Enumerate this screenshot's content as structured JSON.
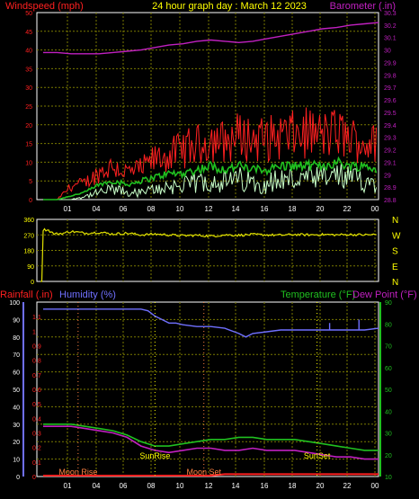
{
  "header": {
    "title": "24 hour graph day : March 12 2023",
    "windspeed_label": "Windspeed (mph)",
    "barometer_label": "Barometer (.in)",
    "rainfall_label": "Rainfall (.in)",
    "humidity_label": "Humidity (%)",
    "temperature_label": "Temperature (°F)",
    "dewpoint_label": "Dew Point (°F)"
  },
  "colors": {
    "wind": "#ff2020",
    "gust": "#ff2020",
    "avg_wind": "#20c020",
    "low_wind": "#c8ffc8",
    "barometer": "#c020c0",
    "direction": "#e0e000",
    "humidity": "#7070ff",
    "temperature": "#20c020",
    "dewpoint": "#c020c0",
    "rain": "#ff2020",
    "grid": "#7a7a00",
    "frame": "#ffffff",
    "title": "#ffff00"
  },
  "chart_data": [
    {
      "type": "line",
      "name": "wind_barometer",
      "x_ticks": [
        "01",
        "04",
        "06",
        "08",
        "10",
        "12",
        "14",
        "16",
        "18",
        "20",
        "22",
        "00"
      ],
      "left_axis": {
        "label": "Windspeed (mph)",
        "range": [
          0,
          50
        ],
        "ticks": [
          0,
          5,
          10,
          15,
          20,
          25,
          30,
          35,
          40,
          45,
          50
        ]
      },
      "right_axis": {
        "label": "Barometer (.in)",
        "range": [
          28.8,
          30.3
        ],
        "ticks": [
          "28.8",
          "28.9",
          "29",
          "29.1",
          "29.2",
          "29.3",
          "29.4",
          "29.5",
          "29.6",
          "29.7",
          "29.8",
          "29.9",
          "30",
          "30.1",
          "30.2",
          "30.3"
        ]
      },
      "series": [
        {
          "key": "barometer",
          "axis": "right",
          "x": [
            0,
            1,
            2,
            3,
            4,
            5,
            6,
            7,
            8,
            9,
            10,
            11,
            12,
            13,
            14,
            15,
            16,
            17,
            18,
            19,
            20,
            21,
            22,
            23,
            24
          ],
          "values": [
            29.98,
            29.98,
            29.97,
            29.97,
            29.97,
            29.98,
            29.99,
            30.0,
            30.02,
            30.04,
            30.05,
            30.07,
            30.08,
            30.07,
            30.06,
            30.07,
            30.09,
            30.11,
            30.13,
            30.15,
            30.17,
            30.18,
            30.2,
            30.21,
            30.22
          ]
        },
        {
          "key": "gust",
          "axis": "left",
          "x": [
            0,
            1,
            2,
            3,
            4,
            5,
            6,
            7,
            8,
            9,
            10,
            11,
            12,
            13,
            14,
            15,
            16,
            17,
            18,
            19,
            20,
            21,
            22,
            23,
            24
          ],
          "values": [
            0,
            0,
            4,
            5,
            8,
            10,
            8,
            9,
            12,
            13,
            15,
            16,
            18,
            17,
            19,
            18,
            18,
            19,
            19,
            20,
            19,
            20,
            18,
            17,
            16
          ]
        },
        {
          "key": "avg_wind",
          "axis": "left",
          "x": [
            0,
            1,
            2,
            3,
            4,
            5,
            6,
            7,
            8,
            9,
            10,
            11,
            12,
            13,
            14,
            15,
            16,
            17,
            18,
            19,
            20,
            21,
            22,
            23,
            24
          ],
          "values": [
            0,
            0,
            1,
            2,
            4,
            5,
            4,
            5,
            6,
            7,
            7,
            8,
            9,
            8,
            9,
            8,
            8,
            9,
            9,
            9,
            9,
            10,
            9,
            9,
            8
          ]
        },
        {
          "key": "low_wind",
          "axis": "left",
          "x": [
            0,
            1,
            2,
            3,
            4,
            5,
            6,
            7,
            8,
            9,
            10,
            11,
            12,
            13,
            14,
            15,
            16,
            17,
            18,
            19,
            20,
            21,
            22,
            23,
            24
          ],
          "values": [
            0,
            0,
            0,
            1,
            2,
            3,
            2,
            2,
            3,
            4,
            4,
            5,
            6,
            5,
            6,
            5,
            5,
            6,
            6,
            6,
            6,
            7,
            6,
            6,
            5
          ]
        }
      ]
    },
    {
      "type": "line",
      "name": "wind_direction",
      "left_ticks": [
        "0",
        "90",
        "180",
        "270",
        "360"
      ],
      "range": [
        0,
        360
      ],
      "right_labels": [
        "N",
        "W",
        "S",
        "E",
        "N"
      ],
      "series": [
        {
          "key": "direction",
          "x": [
            0,
            0.3,
            0.8,
            1.5,
            2,
            3,
            4,
            5,
            6,
            7,
            8,
            9,
            10,
            11,
            12,
            13,
            14,
            15,
            16,
            17,
            18,
            19,
            20,
            21,
            22,
            23,
            24
          ],
          "values": [
            300,
            300,
            275,
            280,
            290,
            280,
            285,
            275,
            280,
            270,
            275,
            270,
            265,
            268,
            262,
            270,
            268,
            272,
            270,
            268,
            272,
            270,
            272,
            270,
            272,
            270,
            272
          ]
        }
      ]
    },
    {
      "type": "line",
      "name": "rain_humidity_temp",
      "x_ticks": [
        "01",
        "04",
        "06",
        "08",
        "10",
        "12",
        "14",
        "16",
        "18",
        "20",
        "22",
        "00"
      ],
      "rain_axis": {
        "label": "Rainfall (.in)",
        "range": [
          0,
          1.2
        ],
        "ticks": [
          "0",
          "0.1",
          "0.2",
          "0.3",
          "0.4",
          "0.5",
          "0.6",
          "0.7",
          "0.8",
          "0.9",
          "1",
          "1.1"
        ]
      },
      "humidity_axis": {
        "label": "Humidity (%)",
        "range": [
          0,
          100
        ],
        "ticks": [
          0,
          10,
          20,
          30,
          40,
          50,
          60,
          70,
          80,
          90,
          100
        ]
      },
      "temp_axis": {
        "label": "Temperature (°F)",
        "range": [
          10,
          90
        ],
        "ticks": [
          10,
          20,
          30,
          40,
          50,
          60,
          70,
          80,
          90
        ]
      },
      "annotations": [
        {
          "text": "Moon Rise",
          "x": 2.5
        },
        {
          "text": "SunRise",
          "x": 8.0
        },
        {
          "text": "Moon Set",
          "x": 11.5
        },
        {
          "text": "SunSet",
          "x": 19.6
        }
      ],
      "series": [
        {
          "key": "humidity",
          "axis": "humidity",
          "x": [
            0,
            1,
            2,
            3,
            4,
            5,
            6,
            7,
            7.5,
            8,
            8.5,
            9,
            9.5,
            10,
            11,
            12,
            13,
            14,
            14.5,
            15,
            16,
            17,
            18,
            19,
            20,
            21,
            22,
            22.5,
            23,
            24
          ],
          "values": [
            96,
            96,
            96,
            96,
            96,
            96,
            96,
            96,
            95,
            92,
            90,
            88,
            88,
            87,
            86,
            86,
            85,
            82,
            80,
            82,
            83,
            84,
            84,
            84,
            84,
            84,
            84,
            84,
            84,
            85
          ]
        },
        {
          "key": "temperature",
          "axis": "temp",
          "x": [
            0,
            1,
            2,
            3,
            4,
            5,
            6,
            7,
            8,
            9,
            10,
            11,
            12,
            13,
            14,
            15,
            16,
            17,
            18,
            19,
            20,
            21,
            22,
            23,
            24
          ],
          "values": [
            34,
            34,
            34,
            33,
            32,
            31,
            29,
            26,
            24,
            24,
            25,
            26,
            27,
            27,
            28,
            28,
            27,
            27,
            27,
            26,
            25,
            24,
            23,
            22,
            22
          ]
        },
        {
          "key": "dewpoint",
          "axis": "temp",
          "x": [
            0,
            1,
            2,
            3,
            4,
            5,
            6,
            7,
            8,
            9,
            10,
            11,
            12,
            13,
            14,
            15,
            16,
            17,
            18,
            19,
            20,
            21,
            22,
            23,
            24
          ],
          "values": [
            33,
            33,
            33,
            32,
            31,
            30,
            28,
            24,
            22,
            21,
            22,
            23,
            23,
            22,
            22,
            23,
            22,
            22,
            22,
            21,
            20,
            19,
            19,
            18,
            18
          ]
        },
        {
          "key": "rain",
          "axis": "rain",
          "x": [
            0,
            12,
            13,
            24
          ],
          "values": [
            0,
            0,
            0.01,
            0.01
          ]
        }
      ]
    }
  ]
}
